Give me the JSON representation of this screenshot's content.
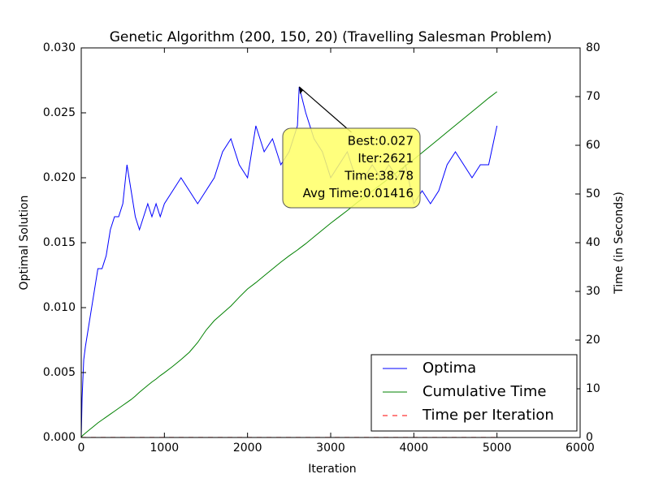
{
  "chart_data": {
    "type": "line",
    "title": "Genetic Algorithm (200, 150, 20) (Travelling Salesman Problem)",
    "xlabel": "Iteration",
    "ylabel": "Optimal Solution",
    "y2label": "Time (in Seconds)",
    "x": [
      0,
      10,
      30,
      50,
      100,
      150,
      200,
      250,
      300,
      350,
      400,
      450,
      500,
      550,
      600,
      650,
      700,
      750,
      800,
      850,
      900,
      950,
      1000,
      1100,
      1200,
      1300,
      1400,
      1500,
      1600,
      1700,
      1800,
      1900,
      2000,
      2100,
      2200,
      2300,
      2400,
      2500,
      2600,
      2621,
      2700,
      2800,
      2900,
      3000,
      3100,
      3200,
      3300,
      3400,
      3500,
      3600,
      3700,
      3800,
      3900,
      4000,
      4100,
      4200,
      4300,
      4400,
      4500,
      4600,
      4700,
      4800,
      4900,
      5000
    ],
    "series": [
      {
        "name": "Optima",
        "color": "#0000ff",
        "axis": "y",
        "linestyle": "solid",
        "values": [
          0,
          0.003,
          0.006,
          0.007,
          0.009,
          0.011,
          0.013,
          0.013,
          0.014,
          0.016,
          0.017,
          0.017,
          0.018,
          0.021,
          0.019,
          0.017,
          0.016,
          0.017,
          0.018,
          0.017,
          0.018,
          0.017,
          0.018,
          0.019,
          0.02,
          0.019,
          0.018,
          0.019,
          0.02,
          0.022,
          0.023,
          0.021,
          0.02,
          0.024,
          0.022,
          0.023,
          0.021,
          0.022,
          0.024,
          0.027,
          0.025,
          0.023,
          0.022,
          0.02,
          0.021,
          0.022,
          0.02,
          0.02,
          0.021,
          0.02,
          0.021,
          0.02,
          0.021,
          0.018,
          0.019,
          0.018,
          0.019,
          0.021,
          0.022,
          0.021,
          0.02,
          0.021,
          0.021,
          0.024
        ]
      },
      {
        "name": "Cumulative Time",
        "color": "#008000",
        "axis": "y2",
        "linestyle": "solid",
        "values": [
          0,
          0.3,
          0.6,
          0.9,
          1.6,
          2.3,
          3.0,
          3.6,
          4.2,
          4.8,
          5.4,
          6.0,
          6.6,
          7.2,
          7.8,
          8.5,
          9.3,
          10.0,
          10.7,
          11.4,
          12.0,
          12.7,
          13.3,
          14.6,
          16.0,
          17.5,
          19.5,
          22.0,
          24.0,
          25.5,
          27.0,
          28.8,
          30.5,
          31.8,
          33.2,
          34.6,
          36.0,
          37.3,
          38.5,
          38.78,
          39.8,
          41.2,
          42.6,
          44.0,
          45.3,
          46.6,
          48.0,
          49.3,
          50.6,
          51.9,
          53.2,
          54.5,
          55.8,
          57.1,
          58.5,
          59.9,
          61.3,
          62.7,
          64.1,
          65.5,
          66.9,
          68.3,
          69.7,
          71.0
        ]
      },
      {
        "name": "Time per Iteration",
        "color": "#ff0000",
        "axis": "y2",
        "linestyle": "dashed",
        "values": [
          0.014,
          0.014,
          0.014,
          0.014,
          0.014,
          0.014,
          0.014,
          0.014,
          0.014,
          0.014,
          0.014,
          0.014,
          0.014,
          0.014,
          0.014,
          0.014,
          0.014,
          0.014,
          0.014,
          0.014,
          0.014,
          0.014,
          0.014,
          0.014,
          0.014,
          0.014,
          0.014,
          0.014,
          0.014,
          0.014,
          0.014,
          0.014,
          0.014,
          0.014,
          0.014,
          0.014,
          0.014,
          0.014,
          0.014,
          0.014,
          0.014,
          0.014,
          0.014,
          0.014,
          0.014,
          0.014,
          0.014,
          0.014,
          0.014,
          0.014,
          0.014,
          0.014,
          0.014,
          0.014,
          0.014,
          0.014,
          0.014,
          0.014,
          0.014,
          0.014,
          0.014,
          0.014,
          0.014,
          0.014
        ]
      }
    ],
    "xlim": [
      0,
      6000
    ],
    "xticks": [
      0,
      1000,
      2000,
      3000,
      4000,
      5000,
      6000
    ],
    "ylim": [
      0,
      0.03
    ],
    "yticks": [
      {
        "value": 0,
        "label": "0.000"
      },
      {
        "value": 0.005,
        "label": "0.005"
      },
      {
        "value": 0.01,
        "label": "0.010"
      },
      {
        "value": 0.015,
        "label": "0.015"
      },
      {
        "value": 0.02,
        "label": "0.020"
      },
      {
        "value": 0.025,
        "label": "0.025"
      },
      {
        "value": 0.03,
        "label": "0.030"
      }
    ],
    "y2lim": [
      0,
      80
    ],
    "y2ticks": [
      0,
      10,
      20,
      30,
      40,
      50,
      60,
      70,
      80
    ],
    "legend": "lower right",
    "grid": false,
    "annotation": {
      "lines": [
        "Best:0.027",
        "Iter:2621",
        "Time:38.78",
        "Avg Time:0.01416"
      ],
      "x": 2621,
      "y": 0.027
    }
  }
}
